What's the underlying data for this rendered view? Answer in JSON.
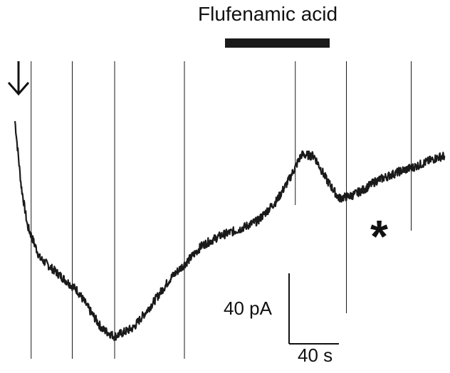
{
  "drug": {
    "label": "Flufenamic acid"
  },
  "scale_bar": {
    "current_label": "40 pA",
    "time_label": "40 s"
  },
  "marks": {
    "asterisk": "*",
    "arrow_icon": "down-arrow-icon"
  },
  "colors": {
    "trace": "#1a1a1a",
    "background": "#ffffff"
  },
  "chart_data": {
    "type": "line",
    "title": "",
    "xlabel": "",
    "ylabel": "",
    "units": {
      "x": "s",
      "y": "pA"
    },
    "series": [
      {
        "x": [
          0,
          5,
          10,
          20,
          35,
          50,
          60,
          70,
          80,
          95,
          110,
          125,
          140,
          150,
          165,
          180,
          195,
          210,
          220,
          230,
          240,
          250,
          260,
          270,
          280,
          290,
          300,
          310,
          320,
          330,
          340,
          345
        ],
        "y": [
          0,
          -52,
          -84,
          -110,
          -123,
          -136,
          -152,
          -167,
          -173,
          -166,
          -147,
          -126,
          -111,
          -100,
          -92,
          -87,
          -80,
          -64,
          -47,
          -27,
          -28,
          -47,
          -62,
          -60,
          -55,
          -48,
          -44,
          -40,
          -37,
          -33,
          -29,
          -28
        ]
      }
    ],
    "stimulus_times": [
      13,
      46,
      80,
      136,
      225,
      266,
      318
    ],
    "drug_application": {
      "label": "Flufenamic acid",
      "start": 162,
      "end": 243
    },
    "scale_bar": {
      "x": 40,
      "x_unit": "s",
      "y": 40,
      "y_unit": "pA"
    },
    "xlim": [
      -5,
      350
    ],
    "ylim": [
      -185,
      100
    ]
  }
}
